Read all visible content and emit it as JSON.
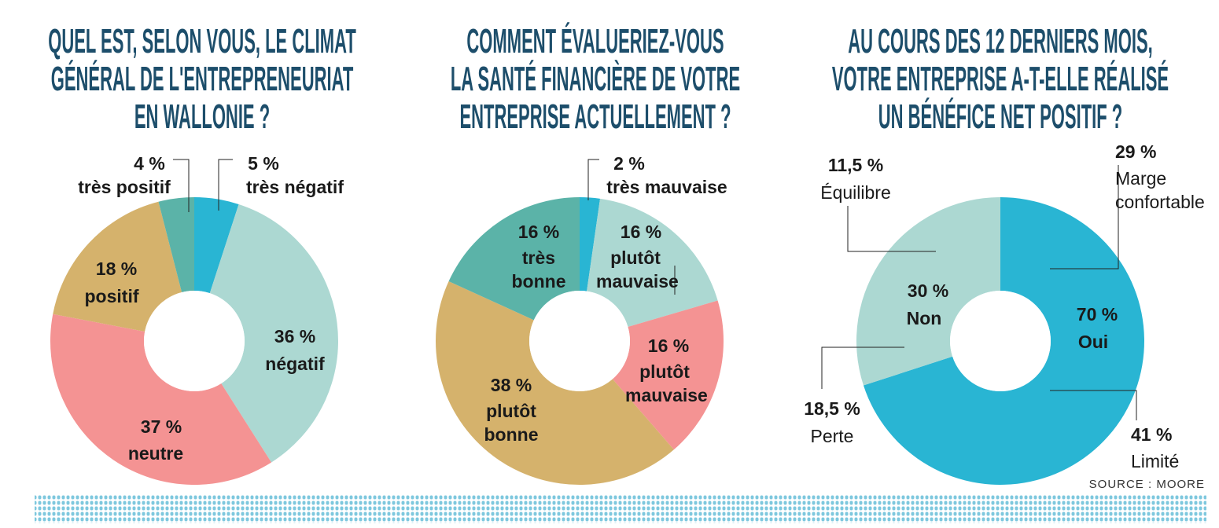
{
  "chart_data": [
    {
      "type": "pie",
      "donut": true,
      "title": [
        "QUEL EST, SELON VOUS, LE CLIMAT",
        "GÉNÉRAL DE L'ENTREPRENEURIAT",
        "EN WALLONIE ?"
      ],
      "categories": [
        "très négatif",
        "négatif",
        "neutre",
        "positif",
        "très positif"
      ],
      "values": [
        5,
        36,
        37,
        18,
        4
      ],
      "value_labels": [
        "5 %",
        "36 %",
        "37 %",
        "18 %",
        "4 %"
      ],
      "colors": [
        "#29b5d3",
        "#acd8d2",
        "#f49393",
        "#d5b26c",
        "#5bb3a8"
      ]
    },
    {
      "type": "pie",
      "donut": true,
      "title": [
        "COMMENT ÉVALUERIEZ-VOUS",
        "LA SANTÉ FINANCIÈRE DE VOTRE",
        "ENTREPRISE ACTUELLEMENT ?"
      ],
      "categories": [
        "très mauvaise",
        "plutôt mauvaise",
        "plutôt mauvaise",
        "plutôt bonne",
        "très bonne"
      ],
      "values": [
        2,
        16,
        16,
        38,
        16
      ],
      "value_labels": [
        "2 %",
        "16 %",
        "16 %",
        "38 %",
        "16 %"
      ],
      "colors": [
        "#29b5d3",
        "#acd8d2",
        "#f49393",
        "#d5b26c",
        "#5bb3a8"
      ]
    },
    {
      "type": "pie",
      "donut": true,
      "title": [
        "AU COURS DES 12 DERNIERS MOIS,",
        "VOTRE ENTREPRISE A-T-ELLE RÉALISÉ",
        "UN BÉNÉFICE NET POSITIF ?"
      ],
      "categories": [
        "Oui",
        "Non"
      ],
      "values": [
        70,
        30
      ],
      "value_labels": [
        "70 %",
        "30 %"
      ],
      "colors": [
        "#29b5d3",
        "#acd8d2"
      ],
      "annotations": [
        {
          "text": "Marge confortable",
          "value": 29,
          "value_label": "29 %"
        },
        {
          "text": "Limité",
          "value": 41,
          "value_label": "41 %"
        },
        {
          "text": "Équilibre",
          "value": 11.5,
          "value_label": "11,5 %"
        },
        {
          "text": "Perte",
          "value": 18.5,
          "value_label": "18,5 %"
        }
      ]
    }
  ],
  "source": "SOURCE : MOORE"
}
